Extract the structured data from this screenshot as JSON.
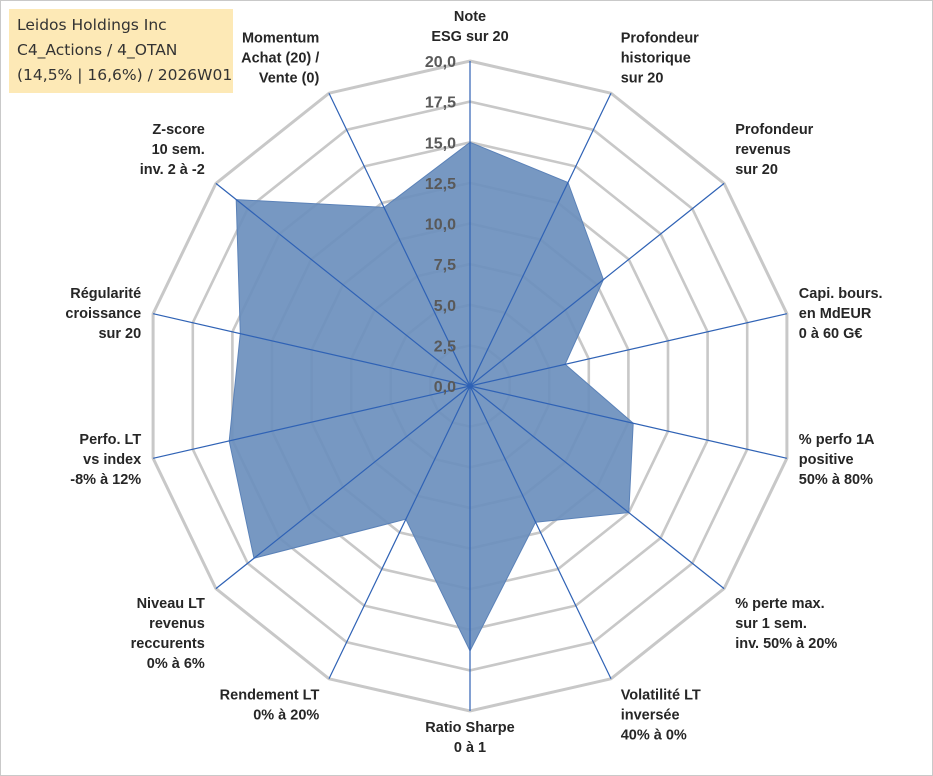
{
  "info_box": {
    "line1": "Leidos Holdings Inc",
    "line2": "C4_Actions / 4_OTAN",
    "line3": "(14,5% | 16,6%) / 2026W01"
  },
  "colors": {
    "fill": "#6b8fbd",
    "spoke": "#2f62b5",
    "ring": "#c8c8c8",
    "info_box_bg": "#fde9b6"
  },
  "chart_data": {
    "type": "radar",
    "ylim": [
      0,
      20
    ],
    "ticks": [
      "0,0",
      "2,5",
      "5,0",
      "7,5",
      "10,0",
      "12,5",
      "15,0",
      "17,5",
      "20,0"
    ],
    "categories": [
      [
        "Note",
        "ESG sur 20"
      ],
      [
        "Profondeur",
        "historique",
        "sur 20"
      ],
      [
        "Profondeur",
        "revenus",
        "sur 20"
      ],
      [
        "Capi. bours.",
        "en MdEUR",
        "0 à 60 G€"
      ],
      [
        "% perfo 1A",
        "positive",
        "50% à 80%"
      ],
      [
        "% perte max.",
        "sur 1 sem.",
        "inv. 50% à 20%"
      ],
      [
        "Volatilité LT",
        "inversée",
        "40% à 0%"
      ],
      [
        "Ratio Sharpe",
        "0 à 1"
      ],
      [
        "Rendement LT",
        "0% à 20%"
      ],
      [
        "Niveau LT",
        "revenus",
        "reccurents",
        "0% à 6%"
      ],
      [
        "Perfo. LT",
        "vs index",
        "-8% à 12%"
      ],
      [
        "Régularité",
        "croissance",
        "sur 20"
      ],
      [
        "Z-score",
        "10 sem.",
        "inv. 2 à -2"
      ],
      [
        "Momentum",
        "Achat (20) /",
        "Vente (0)"
      ]
    ],
    "values": [
      15.0,
      13.9,
      10.5,
      6.0,
      10.3,
      12.5,
      9.3,
      16.3,
      9.1,
      17.0,
      15.2,
      14.5,
      18.4,
      12.2
    ],
    "grid": true,
    "legend": "none"
  }
}
